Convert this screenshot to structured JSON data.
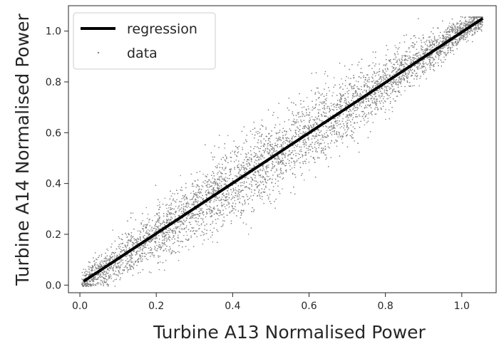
{
  "chart_data": {
    "type": "scatter",
    "xlabel": "Turbine A13 Normalised Power",
    "ylabel": "Turbine A14 Normalised Power",
    "xlim": [
      -0.03,
      1.09
    ],
    "ylim": [
      -0.03,
      1.1
    ],
    "xticks": [
      "0.0",
      "0.2",
      "0.4",
      "0.6",
      "0.8",
      "1.0"
    ],
    "yticks": [
      "0.0",
      "0.2",
      "0.4",
      "0.6",
      "0.8",
      "1.0"
    ],
    "grid": false,
    "legend_position": "top-left",
    "series": [
      {
        "name": "regression",
        "kind": "line",
        "color": "#000000",
        "x": [
          0.01,
          1.055
        ],
        "y": [
          0.015,
          1.05
        ]
      },
      {
        "name": "data",
        "kind": "scatter",
        "color": "#808080",
        "description_of_distribution": "dense cloud around y ≈ x with spread widening in mid-range",
        "x": [
          0.02,
          0.03,
          0.04,
          0.05,
          0.06,
          0.08,
          0.1,
          0.12,
          0.15,
          0.18,
          0.2,
          0.22,
          0.25,
          0.28,
          0.3,
          0.33,
          0.35,
          0.38,
          0.4,
          0.42,
          0.45,
          0.48,
          0.5,
          0.53,
          0.55,
          0.58,
          0.6,
          0.63,
          0.65,
          0.68,
          0.7,
          0.73,
          0.75,
          0.78,
          0.8,
          0.83,
          0.85,
          0.88,
          0.9,
          0.93,
          0.95,
          0.98,
          1.0,
          1.02,
          1.04,
          1.05
        ],
        "y": [
          0.02,
          0.03,
          0.05,
          0.05,
          0.07,
          0.08,
          0.11,
          0.12,
          0.16,
          0.18,
          0.21,
          0.22,
          0.26,
          0.28,
          0.31,
          0.33,
          0.36,
          0.38,
          0.41,
          0.42,
          0.46,
          0.48,
          0.51,
          0.53,
          0.56,
          0.58,
          0.61,
          0.63,
          0.66,
          0.68,
          0.71,
          0.73,
          0.76,
          0.78,
          0.81,
          0.83,
          0.86,
          0.88,
          0.91,
          0.93,
          0.96,
          0.98,
          1.01,
          1.02,
          1.04,
          1.04
        ]
      }
    ]
  }
}
